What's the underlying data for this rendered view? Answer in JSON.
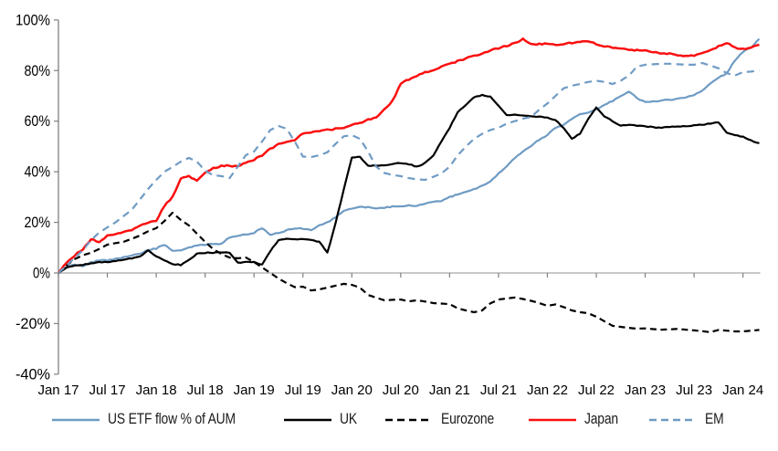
{
  "chart_data": {
    "type": "line",
    "title": "",
    "xlabel": "",
    "ylabel": "",
    "ylim": [
      -40,
      100
    ],
    "y_tick_labels": [
      "100%",
      "80%",
      "60%",
      "40%",
      "20%",
      "0%",
      "-20%",
      "-40%"
    ],
    "y_tick_values": [
      100,
      80,
      60,
      40,
      20,
      0,
      -20,
      -40
    ],
    "x_tick_labels": [
      "Jan 17",
      "Jul 17",
      "Jan 18",
      "Jul 18",
      "Jan 19",
      "Jul 19",
      "Jan 20",
      "Jul 20",
      "Jan 21",
      "Jul 21",
      "Jan 22",
      "Jul 22",
      "Jan 23",
      "Jul 23",
      "Jan 24"
    ],
    "x_start_month": "Jan 2017",
    "x_end_month": "Mar 2024",
    "grid": "zero-line-only",
    "legend_position": "bottom",
    "unit": "percent",
    "series": [
      {
        "name": "US ETF flow % of AUM",
        "color": "#6f9bc4",
        "dash": "solid",
        "values": [
          0,
          2.5,
          3.5,
          2.8,
          4.2,
          5.0,
          5.0,
          5.5,
          6.2,
          6.9,
          7.5,
          9.0,
          9.7,
          11.2,
          8.7,
          9.0,
          10.0,
          10.8,
          11.2,
          11.4,
          11.6,
          14.1,
          14.8,
          15.2,
          15.9,
          17.7,
          15.2,
          15.9,
          16.8,
          17.7,
          17.5,
          17.0,
          18.8,
          20.0,
          22.0,
          24.5,
          25.5,
          26.0,
          26.0,
          25.5,
          25.8,
          26.2,
          26.3,
          26.8,
          26.5,
          27.5,
          28.0,
          28.5,
          30.0,
          31.0,
          32.0,
          33.0,
          34.5,
          36.0,
          39.3,
          42.0,
          45.5,
          48.0,
          50.2,
          52.7,
          54.5,
          57.4,
          58.5,
          61.0,
          62.8,
          63.5,
          64.6,
          66.5,
          68.0,
          70.0,
          71.8,
          69.0,
          67.5,
          67.8,
          68.2,
          68.4,
          68.8,
          69.5,
          70.3,
          72.0,
          75.0,
          77.2,
          78.9,
          84.0,
          87.5,
          89.0,
          92.5
        ]
      },
      {
        "name": "UK",
        "color": "#000000",
        "dash": "solid",
        "values": [
          0,
          2.2,
          3.0,
          3.2,
          3.8,
          4.2,
          4.3,
          4.8,
          5.2,
          5.8,
          6.5,
          9.0,
          6.5,
          5.0,
          3.5,
          3.2,
          5.0,
          7.6,
          8.0,
          8.0,
          8.2,
          8.0,
          4.0,
          4.3,
          4.3,
          3.2,
          8.7,
          13.0,
          13.4,
          13.4,
          13.4,
          13.0,
          12.3,
          8.0,
          19.5,
          33.0,
          45.5,
          45.8,
          42.4,
          42.4,
          42.6,
          43.0,
          43.5,
          43.0,
          42.0,
          43.5,
          46.5,
          52.0,
          57.4,
          63.5,
          66.5,
          69.3,
          70.4,
          69.7,
          66.0,
          62.5,
          62.5,
          62.3,
          62.0,
          61.8,
          61.5,
          60.3,
          57.4,
          53.0,
          55.0,
          61.0,
          65.3,
          62.0,
          60.0,
          58.3,
          58.5,
          58.2,
          58.0,
          57.6,
          57.4,
          57.7,
          57.9,
          58.1,
          58.3,
          58.6,
          59.0,
          59.6,
          55.6,
          54.5,
          53.8,
          52.3,
          51.3
        ]
      },
      {
        "name": "Eurozone",
        "color": "#000000",
        "dash": "dashed",
        "values": [
          0,
          3.0,
          5.5,
          7.0,
          8.0,
          9.5,
          11.2,
          11.8,
          12.3,
          13.5,
          14.8,
          16.5,
          17.7,
          20.5,
          23.8,
          21.0,
          18.8,
          15.5,
          12.3,
          9.4,
          7.5,
          6.1,
          5.8,
          6.1,
          4.3,
          2.2,
          0.0,
          -2.2,
          -4.0,
          -5.6,
          -5.4,
          -6.9,
          -6.5,
          -5.8,
          -5.0,
          -4.3,
          -4.7,
          -5.8,
          -8.7,
          -9.8,
          -10.8,
          -10.6,
          -10.5,
          -11.2,
          -10.8,
          -11.3,
          -11.9,
          -12.1,
          -12.3,
          -14.0,
          -14.8,
          -15.5,
          -14.8,
          -12.0,
          -10.5,
          -10.1,
          -9.7,
          -10.3,
          -11.0,
          -11.9,
          -13.0,
          -12.4,
          -13.5,
          -14.8,
          -15.5,
          -15.9,
          -17.3,
          -19.1,
          -20.9,
          -21.3,
          -21.7,
          -22.0,
          -21.9,
          -22.2,
          -22.4,
          -22.3,
          -22.1,
          -22.4,
          -22.7,
          -23.0,
          -23.4,
          -22.5,
          -22.8,
          -23.1,
          -23.1,
          -22.8,
          -22.5
        ]
      },
      {
        "name": "Japan",
        "color": "#fb0f0f",
        "dash": "solid",
        "values": [
          0,
          4.0,
          7.0,
          9.4,
          13.4,
          12.3,
          14.8,
          15.2,
          16.0,
          17.0,
          18.8,
          20.0,
          20.6,
          26.5,
          30.0,
          37.5,
          38.3,
          36.5,
          39.5,
          41.5,
          42.2,
          42.5,
          42.0,
          43.5,
          44.8,
          46.6,
          49.0,
          51.0,
          52.0,
          52.7,
          55.0,
          55.5,
          56.0,
          56.5,
          57.0,
          57.4,
          58.5,
          59.2,
          60.5,
          61.7,
          64.5,
          68.0,
          74.8,
          76.5,
          78.0,
          79.3,
          80.3,
          81.5,
          82.5,
          83.8,
          84.8,
          85.8,
          86.8,
          88.0,
          88.8,
          89.8,
          90.8,
          92.4,
          90.3,
          90.5,
          90.6,
          90.2,
          90.6,
          91.0,
          91.2,
          91.7,
          90.5,
          89.5,
          89.0,
          88.6,
          88.3,
          88.0,
          87.8,
          87.4,
          87.0,
          86.6,
          86.0,
          85.6,
          86.0,
          87.0,
          88.3,
          89.5,
          91.0,
          89.0,
          88.4,
          89.3,
          90.2
        ]
      },
      {
        "name": "EM",
        "color": "#6f9bc4",
        "dash": "dashed",
        "values": [
          0,
          3.0,
          6.0,
          9.0,
          13.0,
          16.0,
          18.0,
          20.0,
          22.5,
          25.0,
          29.0,
          33.2,
          36.8,
          40.0,
          41.9,
          44.0,
          45.5,
          44.0,
          40.4,
          38.6,
          38.3,
          37.5,
          42.0,
          46.6,
          48.0,
          52.0,
          56.5,
          58.1,
          57.0,
          52.0,
          46.0,
          45.8,
          46.5,
          47.7,
          51.0,
          54.0,
          54.5,
          53.0,
          48.0,
          42.0,
          39.5,
          38.7,
          38.3,
          37.5,
          37.0,
          36.8,
          38.0,
          39.3,
          42.0,
          46.5,
          50.0,
          53.0,
          55.0,
          56.5,
          57.4,
          59.0,
          60.0,
          61.0,
          61.7,
          64.5,
          67.0,
          70.0,
          73.0,
          74.0,
          74.7,
          75.5,
          76.0,
          75.5,
          74.7,
          76.0,
          78.0,
          81.6,
          82.3,
          82.5,
          82.7,
          82.7,
          82.5,
          82.3,
          82.3,
          83.0,
          82.0,
          80.9,
          79.0,
          78.0,
          79.4,
          79.6,
          80.0
        ]
      }
    ]
  },
  "legend": {
    "items": [
      {
        "label": "US ETF flow % of AUM",
        "color": "#6f9bc4",
        "dash": "solid"
      },
      {
        "label": "UK",
        "color": "#000000",
        "dash": "solid"
      },
      {
        "label": "Eurozone",
        "color": "#000000",
        "dash": "dashed"
      },
      {
        "label": "Japan",
        "color": "#fb0f0f",
        "dash": "solid"
      },
      {
        "label": "EM",
        "color": "#6f9bc4",
        "dash": "dashed"
      }
    ]
  },
  "axis_colors": {
    "axis_line": "#7f7f7f",
    "zero_line": "#a6a6a6"
  }
}
